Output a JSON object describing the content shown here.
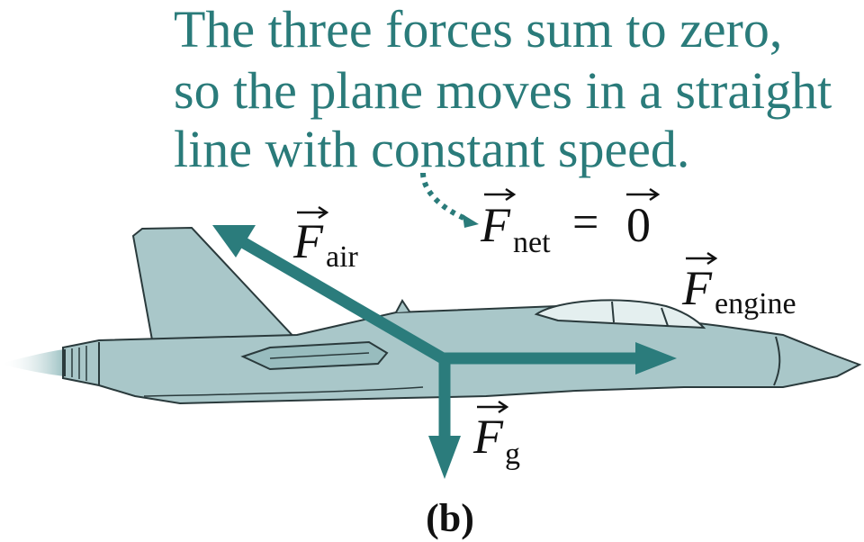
{
  "caption": {
    "lines": [
      "The three forces sum to zero,",
      "so the plane moves in a straight",
      "line with constant speed."
    ]
  },
  "equation": {
    "symbol": "F",
    "subscript": "net",
    "equals": "=",
    "zero": "0"
  },
  "forces": {
    "air": {
      "symbol": "F",
      "subscript": "air"
    },
    "engine": {
      "symbol": "F",
      "subscript": "engine"
    },
    "gravity": {
      "symbol": "F",
      "subscript": "g"
    }
  },
  "panel_label": "(b)",
  "colors": {
    "teal_text": "#2a7b7a",
    "arrow": "#2b7c7c",
    "plane_fill": "#a9c7c9",
    "plane_dark": "#8fb3b5",
    "plane_outline": "#2a3a3c",
    "black": "#111111"
  }
}
